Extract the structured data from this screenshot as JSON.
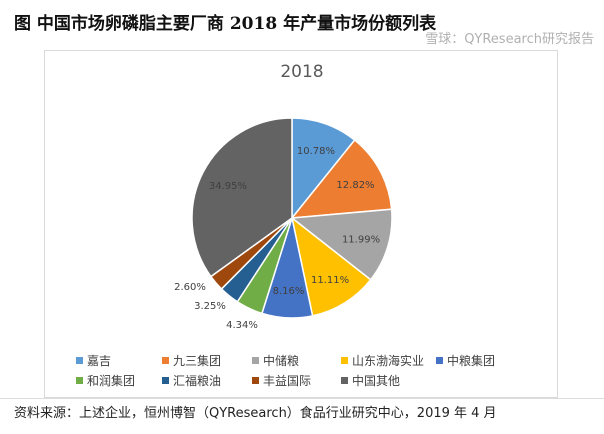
{
  "title": "图  中国市场卵磷脂主要厂商 2018 年产量市场份额列表",
  "chart_data": {
    "type": "pie",
    "title": "2018",
    "categories": [
      "嘉吉",
      "九三集团",
      "中储粮",
      "山东渤海实业",
      "中粮集团",
      "和润集团",
      "汇福粮油",
      "丰益国际",
      "中国其他"
    ],
    "values": [
      10.78,
      12.82,
      11.99,
      11.11,
      8.16,
      4.34,
      3.25,
      2.6,
      34.95
    ],
    "labels": [
      "10.78%",
      "12.82%",
      "11.99%",
      "11.11%",
      "8.16%",
      "4.34%",
      "3.25%",
      "2.60%",
      "34.95%"
    ],
    "colors": [
      "#5B9BD5",
      "#ED7D31",
      "#A5A5A5",
      "#FFC000",
      "#4472C4",
      "#70AD47",
      "#255E91",
      "#9E480E",
      "#636363"
    ],
    "start": "12 o'clock, clockwise",
    "legend": "bottom"
  },
  "source": "资料来源：上述企业，恒州博智（QYResearch）食品行业研究中心，2019 年 4 月",
  "watermark": "雪球：QYResearch研究报告"
}
